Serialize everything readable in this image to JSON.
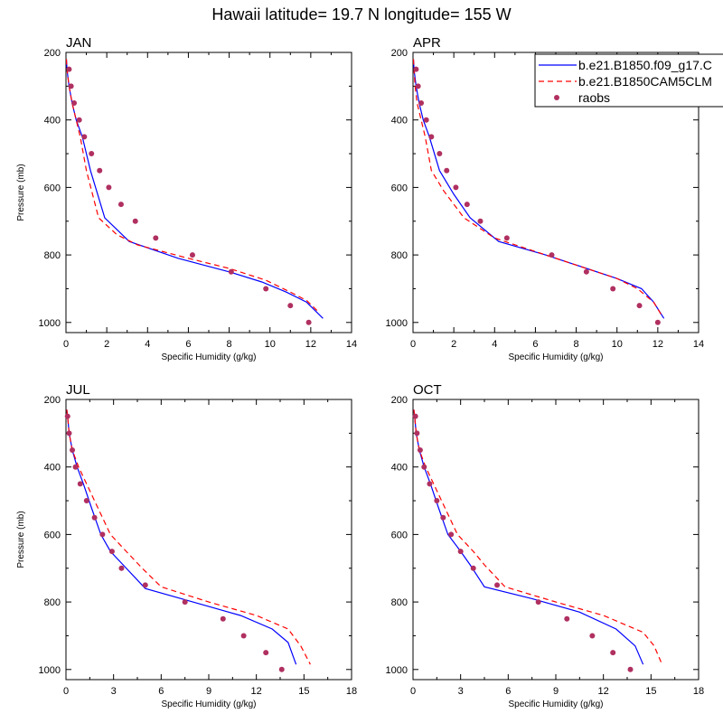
{
  "title": "Hawaii  latitude= 19.7 N longitude= 155 W",
  "chart_data": [
    {
      "type": "line",
      "panel": "JAN",
      "xlabel": "Specific Humidity (g/kg)",
      "ylabel": "Pressure (mb)",
      "xlim": [
        0,
        14
      ],
      "xticks": [
        "0",
        "2",
        "4",
        "6",
        "8",
        "10",
        "12",
        "14"
      ],
      "ylim": [
        1030,
        200
      ],
      "yticks": [
        "200",
        "400",
        "600",
        "800",
        "1000"
      ],
      "series": [
        {
          "name": "b.e21.B1850.f09_g17.C",
          "style": "solid",
          "color": "#0000ff",
          "x": [
            0.02,
            0.05,
            0.15,
            0.3,
            0.5,
            0.8,
            1.2,
            1.9,
            3.1,
            5.5,
            8.0,
            9.6,
            10.8,
            11.8,
            12.3,
            12.6
          ],
          "y": [
            220,
            250,
            300,
            350,
            400,
            450,
            550,
            690,
            760,
            810,
            850,
            880,
            910,
            940,
            970,
            988
          ]
        },
        {
          "name": "b.e21.B1850CAM5CLM",
          "style": "dashed",
          "color": "#ff0000",
          "x": [
            0.02,
            0.05,
            0.15,
            0.3,
            0.5,
            0.7,
            1.0,
            1.6,
            2.5,
            3.5,
            6.0,
            8.0,
            9.8,
            11.0,
            11.8,
            12.4
          ],
          "y": [
            220,
            250,
            300,
            350,
            400,
            450,
            550,
            690,
            740,
            770,
            810,
            840,
            875,
            910,
            935,
            970
          ]
        },
        {
          "name": "raobs",
          "style": "marker",
          "color": "#b03060",
          "x": [
            0.15,
            0.25,
            0.4,
            0.65,
            0.9,
            1.25,
            1.65,
            2.1,
            2.7,
            3.4,
            4.4,
            6.2,
            8.1,
            9.8,
            11.0,
            11.9
          ],
          "y": [
            250,
            300,
            350,
            400,
            450,
            500,
            550,
            600,
            650,
            700,
            750,
            800,
            850,
            900,
            950,
            1000
          ]
        }
      ]
    },
    {
      "type": "line",
      "panel": "APR",
      "xlabel": "Specific Humidity (g/kg)",
      "ylabel": "",
      "xlim": [
        0,
        14
      ],
      "xticks": [
        "0",
        "2",
        "4",
        "6",
        "8",
        "10",
        "12",
        "14"
      ],
      "ylim": [
        1030,
        200
      ],
      "yticks": [
        "200",
        "400",
        "600",
        "800",
        "1000"
      ],
      "series": [
        {
          "name": "b.e21.B1850.f09_g17.C",
          "style": "solid",
          "color": "#0000ff",
          "x": [
            0.02,
            0.05,
            0.15,
            0.3,
            0.5,
            0.8,
            1.3,
            2.0,
            2.8,
            4.2,
            6.5,
            8.5,
            10.0,
            11.2,
            11.8,
            12.3
          ],
          "y": [
            220,
            250,
            300,
            350,
            400,
            450,
            550,
            620,
            690,
            760,
            800,
            840,
            870,
            900,
            940,
            988
          ]
        },
        {
          "name": "b.e21.B1850CAM5CLM",
          "style": "dashed",
          "color": "#ff0000",
          "x": [
            0.02,
            0.05,
            0.1,
            0.2,
            0.4,
            0.6,
            0.9,
            1.5,
            2.5,
            4.0,
            6.5,
            8.5,
            10.0,
            11.0,
            11.8,
            12.2
          ],
          "y": [
            220,
            250,
            300,
            350,
            400,
            450,
            550,
            610,
            690,
            750,
            800,
            840,
            870,
            900,
            940,
            980
          ]
        },
        {
          "name": "raobs",
          "style": "marker",
          "color": "#b03060",
          "x": [
            0.15,
            0.25,
            0.4,
            0.65,
            0.9,
            1.3,
            1.65,
            2.1,
            2.65,
            3.3,
            4.6,
            6.8,
            8.5,
            9.8,
            11.1,
            12.0
          ],
          "y": [
            250,
            300,
            350,
            400,
            450,
            500,
            550,
            600,
            650,
            700,
            750,
            800,
            850,
            900,
            950,
            1000
          ]
        }
      ]
    },
    {
      "type": "line",
      "panel": "JUL",
      "xlabel": "Specific Humidity (g/kg)",
      "ylabel": "Pressure (mb)",
      "xlim": [
        0,
        18
      ],
      "xticks": [
        "0",
        "3",
        "6",
        "9",
        "12",
        "15",
        "18"
      ],
      "ylim": [
        1030,
        200
      ],
      "yticks": [
        "200",
        "400",
        "600",
        "800",
        "1000"
      ],
      "series": [
        {
          "name": "b.e21.B1850.f09_g17.C",
          "style": "solid",
          "color": "#0000ff",
          "x": [
            0.05,
            0.1,
            0.2,
            0.4,
            0.7,
            1.1,
            1.6,
            2.2,
            2.8,
            3.6,
            5.0,
            8.0,
            11.0,
            13.0,
            14.0,
            14.5
          ],
          "y": [
            230,
            250,
            300,
            350,
            400,
            450,
            520,
            600,
            650,
            690,
            760,
            800,
            840,
            880,
            920,
            985
          ]
        },
        {
          "name": "b.e21.B1850CAM5CLM",
          "style": "dashed",
          "color": "#ff0000",
          "x": [
            0.05,
            0.1,
            0.2,
            0.4,
            0.8,
            1.3,
            2.0,
            2.8,
            3.8,
            4.8,
            6.0,
            9.0,
            12.0,
            14.0,
            14.8,
            15.4
          ],
          "y": [
            230,
            250,
            300,
            350,
            400,
            450,
            520,
            600,
            650,
            700,
            755,
            800,
            840,
            880,
            930,
            985
          ]
        },
        {
          "name": "raobs",
          "style": "marker",
          "color": "#b03060",
          "x": [
            0.1,
            0.2,
            0.4,
            0.6,
            0.9,
            1.3,
            1.8,
            2.3,
            2.9,
            3.5,
            5.0,
            7.5,
            9.9,
            11.2,
            12.6,
            13.6
          ],
          "y": [
            250,
            300,
            350,
            400,
            450,
            500,
            550,
            600,
            650,
            700,
            750,
            800,
            850,
            900,
            950,
            1000
          ]
        }
      ]
    },
    {
      "type": "line",
      "panel": "OCT",
      "xlabel": "Specific Humidity (g/kg)",
      "ylabel": "",
      "xlim": [
        0,
        18
      ],
      "xticks": [
        "0",
        "3",
        "6",
        "9",
        "12",
        "15",
        "18"
      ],
      "ylim": [
        1030,
        200
      ],
      "yticks": [
        "200",
        "400",
        "600",
        "800",
        "1000"
      ],
      "series": [
        {
          "name": "b.e21.B1850.f09_g17.C",
          "style": "solid",
          "color": "#0000ff",
          "x": [
            0.05,
            0.1,
            0.2,
            0.4,
            0.7,
            1.1,
            1.6,
            2.2,
            3.0,
            3.6,
            4.5,
            7.5,
            10.5,
            12.8,
            14.0,
            14.5
          ],
          "y": [
            230,
            250,
            300,
            350,
            400,
            450,
            520,
            600,
            650,
            690,
            755,
            790,
            830,
            880,
            930,
            985
          ]
        },
        {
          "name": "b.e21.B1850CAM5CLM",
          "style": "dashed",
          "color": "#ff0000",
          "x": [
            0.05,
            0.1,
            0.2,
            0.4,
            0.8,
            1.3,
            2.0,
            2.8,
            3.8,
            4.5,
            5.8,
            9.0,
            12.0,
            14.5,
            15.2,
            15.7
          ],
          "y": [
            230,
            250,
            300,
            350,
            400,
            450,
            520,
            600,
            650,
            690,
            755,
            800,
            840,
            890,
            930,
            985
          ]
        },
        {
          "name": "raobs",
          "style": "marker",
          "color": "#b03060",
          "x": [
            0.15,
            0.25,
            0.45,
            0.7,
            1.05,
            1.5,
            1.9,
            2.4,
            3.0,
            3.8,
            5.3,
            7.9,
            9.7,
            11.3,
            12.6,
            13.7
          ],
          "y": [
            250,
            300,
            350,
            400,
            450,
            500,
            550,
            600,
            650,
            700,
            750,
            800,
            850,
            900,
            950,
            1000
          ]
        }
      ]
    }
  ],
  "legend": {
    "entries": [
      {
        "label": "b.e21.B1850.f09_g17.C",
        "style": "solid",
        "color": "#0000ff"
      },
      {
        "label": "b.e21.B1850CAM5CLM",
        "style": "dashed",
        "color": "#ff0000"
      },
      {
        "label": "raobs",
        "style": "marker",
        "color": "#b03060"
      }
    ]
  }
}
